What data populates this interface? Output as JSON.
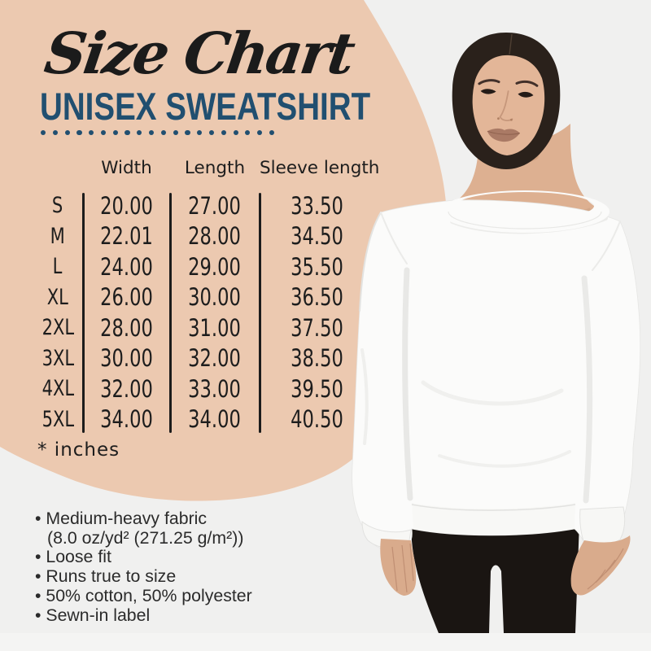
{
  "title": "Size Chart",
  "subtitle": "UNISEX SWEATSHIRT",
  "dots_count": 20,
  "table": {
    "headers": [
      "Width",
      "Length",
      "Sleeve length"
    ],
    "rows": [
      {
        "size": "S",
        "width": "20.00",
        "length": "27.00",
        "sleeve": "33.50"
      },
      {
        "size": "M",
        "width": "22.01",
        "length": "28.00",
        "sleeve": "34.50"
      },
      {
        "size": "L",
        "width": "24.00",
        "length": "29.00",
        "sleeve": "35.50"
      },
      {
        "size": "XL",
        "width": "26.00",
        "length": "30.00",
        "sleeve": "36.50"
      },
      {
        "size": "2XL",
        "width": "28.00",
        "length": "31.00",
        "sleeve": "37.50"
      },
      {
        "size": "3XL",
        "width": "30.00",
        "length": "32.00",
        "sleeve": "38.50"
      },
      {
        "size": "4XL",
        "width": "32.00",
        "length": "33.00",
        "sleeve": "39.50"
      },
      {
        "size": "5XL",
        "width": "34.00",
        "length": "34.00",
        "sleeve": "40.50"
      }
    ]
  },
  "units_note": "* inches",
  "notes": {
    "items": [
      "• Medium-heavy fabric",
      "(8.0 oz/yd² (271.25 g/m²))",
      "• Loose fit",
      "• Runs true to size",
      "• 50% cotton, 50% polyester",
      "• Sewn-in label"
    ]
  },
  "colors": {
    "accent_blue": "#214f70",
    "blob_peach": "#ecc9b0",
    "background": "#f0f0ef",
    "ink": "#1c1c1c",
    "sweatshirt_white": "#fbfbfa",
    "pants_black": "#1a1512"
  },
  "model_photo": {
    "description": "woman wearing white crewneck sweatshirt and black pants"
  }
}
